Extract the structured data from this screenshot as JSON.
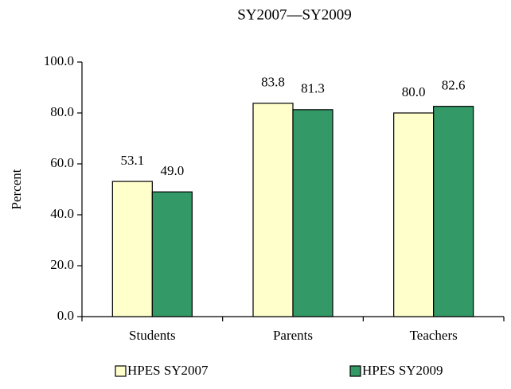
{
  "chart_data": {
    "type": "bar",
    "title": "SY2007—SY2009",
    "y_label": "Percent",
    "categories": [
      "Students",
      "Parents",
      "Teachers"
    ],
    "series": [
      {
        "name": "HPES SY2007",
        "color": "#ffffcc",
        "values": [
          53.1,
          83.8,
          80.0
        ],
        "value_labels": [
          "53.1",
          "83.8",
          "80.0"
        ]
      },
      {
        "name": "HPES SY2009",
        "color": "#339966",
        "values": [
          49.0,
          81.3,
          82.6
        ],
        "value_labels": [
          "49.0",
          "81.3",
          "82.6"
        ]
      }
    ],
    "ylim": [
      0,
      100
    ],
    "yticks": [
      {
        "value": 0,
        "label": "0.0"
      },
      {
        "value": 20,
        "label": "20.0"
      },
      {
        "value": 40,
        "label": "40.0"
      },
      {
        "value": 60,
        "label": "60.0"
      },
      {
        "value": 80,
        "label": "80.0"
      },
      {
        "value": 100,
        "label": "100.0"
      }
    ],
    "grid": false,
    "legend": "bottom"
  }
}
